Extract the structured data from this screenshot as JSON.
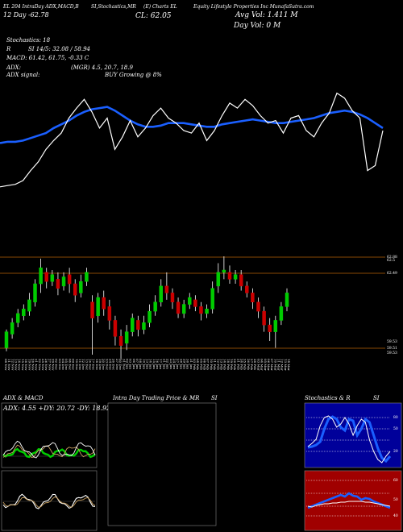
{
  "header": {
    "line1_left": "EL 204 IntraDay ADX,MACD,B",
    "line1_mid": "SI,Stochastics,MR",
    "line1_mid2": "(E) Charts EL",
    "line1_right": "Equity Lifestyle Properties Inc MunafaSutra.com",
    "line2_left": "12 Day  -62.78",
    "close": "CL: 62.05",
    "avg_vol": "Avg Vol: 1.411  M",
    "day_vol": "Day Vol: 0   M",
    "stoch": "Stochastics: 18",
    "r_label": "R",
    "si": "SI 14/5: 32.08 / 58.94",
    "macd": "MACD: 61.42, 61.75, -0.33 C",
    "adx": "ADX:",
    "adx_mid": "(MGR) 4.5, 20.7, 18.9",
    "adx_signal": "ADX  signal:",
    "signal_text": "BUY Growing @ 8%"
  },
  "panels": {
    "adx_title": "ADX  & MACD",
    "adx_values": "ADX: 4.55  +DY: 20.72  -DY: 18.92",
    "intraday_title": "Intra  Day Trading Price  & MR",
    "intraday_si": "SI",
    "stoch_title": "Stochastics & R",
    "stoch_si": "SI"
  },
  "chart_data": {
    "type": "candlestick",
    "price_levels": [
      62.88,
      62.5,
      62.49,
      59.53,
      59.51,
      59.53
    ],
    "price_level_labels": [
      "62.88",
      "62.5",
      "62.49",
      "59.53",
      "59.51",
      "59.53"
    ],
    "dates": [
      "08 Nov",
      "11 Nov",
      "12 Nov",
      "13 Nov",
      "14 Nov",
      "15 Nov",
      "18 Nov",
      "19 Nov",
      "20 Nov",
      "21 Nov",
      "22 Nov",
      "25 Nov",
      "26 Nov",
      "27 Nov",
      "29 Nov",
      "02 Dec",
      "03 Dec",
      "04 Dec",
      "05 Dec",
      "06 Dec",
      "09 Dec",
      "10 Dec",
      "11 Dec",
      "12 Dec",
      "13 Dec",
      "16 Dec",
      "17 Dec",
      "18 Dec",
      "19 Dec",
      "20 Dec",
      "23 Dec",
      "24 Dec",
      "26 Dec",
      "27 Dec",
      "30 Dec",
      "31 Dec",
      "02 Jan",
      "03 Jan",
      "06 Jan",
      "07 Jan",
      "08 Jan",
      "10 Jan",
      "13 Jan",
      "14 Jan",
      "15 Jan",
      "16 Jan",
      "17 Jan",
      "21 Jan",
      "22 Jan",
      "23 Jan",
      "24 Jan",
      "27 Jan",
      "28 Jan",
      "29 Jan",
      "30 Jan",
      "31 Jan",
      "03 Feb",
      "04 Feb",
      "05 Feb",
      "06 Feb",
      "07 Feb",
      "10 Feb",
      "11 Feb",
      "12 Feb",
      "13 Feb",
      "14 Feb",
      "18 Feb",
      "19 Feb",
      "20 Feb",
      "21 Feb",
      "24 Feb",
      "25 Feb",
      "26 Feb",
      "27 Feb",
      "28 Feb",
      "03 Mar",
      "04 Mar",
      "05 Mar",
      "06 Mar",
      "07 Mar",
      "10 Mar",
      "11 Mar",
      "12 Mar",
      "13 Mar",
      "14 Mar"
    ],
    "candles": [
      {
        "o": 59.6,
        "c": 60.3,
        "h": 60.4,
        "l": 59.45,
        "up": true
      },
      {
        "o": 60.2,
        "c": 60.7,
        "h": 60.9,
        "l": 60.0,
        "up": true
      },
      {
        "o": 60.7,
        "c": 61.1,
        "h": 61.3,
        "l": 60.5,
        "up": true
      },
      {
        "o": 61.0,
        "c": 61.3,
        "h": 61.5,
        "l": 60.8,
        "up": true
      },
      {
        "o": 61.2,
        "c": 61.7,
        "h": 62.0,
        "l": 61.0,
        "up": true
      },
      {
        "o": 61.6,
        "c": 62.4,
        "h": 62.6,
        "l": 61.4,
        "up": true
      },
      {
        "o": 62.4,
        "c": 63.1,
        "h": 63.5,
        "l": 62.0,
        "up": true
      },
      {
        "o": 62.9,
        "c": 62.5,
        "h": 63.1,
        "l": 62.2,
        "up": false
      },
      {
        "o": 62.5,
        "c": 62.8,
        "h": 63.0,
        "l": 62.3,
        "up": true
      },
      {
        "o": 62.6,
        "c": 62.2,
        "h": 62.9,
        "l": 61.9,
        "up": false
      },
      {
        "o": 62.3,
        "c": 62.7,
        "h": 62.9,
        "l": 62.1,
        "up": true
      },
      {
        "o": 62.8,
        "c": 62.4,
        "h": 63.1,
        "l": 62.0,
        "up": false
      },
      {
        "o": 62.4,
        "c": 61.9,
        "h": 62.6,
        "l": 61.6,
        "up": false
      },
      {
        "o": 62.0,
        "c": 62.5,
        "h": 62.8,
        "l": 61.8,
        "up": true
      },
      {
        "o": 62.5,
        "c": 62.9,
        "h": 63.1,
        "l": 62.3,
        "up": true
      },
      {
        "o": 61.6,
        "c": 60.9,
        "h": 61.9,
        "l": 59.3,
        "up": false
      },
      {
        "o": 61.0,
        "c": 61.8,
        "h": 62.0,
        "l": 60.7,
        "up": true
      },
      {
        "o": 61.8,
        "c": 61.3,
        "h": 62.1,
        "l": 61.0,
        "up": false
      },
      {
        "o": 61.4,
        "c": 60.8,
        "h": 61.7,
        "l": 60.4,
        "up": false
      },
      {
        "o": 60.8,
        "c": 60.1,
        "h": 61.0,
        "l": 59.7,
        "up": false
      },
      {
        "o": 60.1,
        "c": 59.7,
        "h": 60.4,
        "l": 59.1,
        "up": false
      },
      {
        "o": 59.8,
        "c": 60.3,
        "h": 60.6,
        "l": 59.5,
        "up": true
      },
      {
        "o": 60.3,
        "c": 60.9,
        "h": 61.1,
        "l": 60.1,
        "up": true
      },
      {
        "o": 60.8,
        "c": 60.4,
        "h": 61.0,
        "l": 60.1,
        "up": false
      },
      {
        "o": 60.4,
        "c": 60.7,
        "h": 61.0,
        "l": 60.2,
        "up": true
      },
      {
        "o": 60.7,
        "c": 61.2,
        "h": 61.5,
        "l": 60.5,
        "up": true
      },
      {
        "o": 61.2,
        "c": 61.6,
        "h": 61.9,
        "l": 61.0,
        "up": true
      },
      {
        "o": 61.6,
        "c": 62.3,
        "h": 62.6,
        "l": 61.4,
        "up": true
      },
      {
        "o": 62.3,
        "c": 62.0,
        "h": 62.9,
        "l": 61.7,
        "up": false
      },
      {
        "o": 62.0,
        "c": 61.6,
        "h": 62.2,
        "l": 61.3,
        "up": false
      },
      {
        "o": 61.6,
        "c": 61.1,
        "h": 61.8,
        "l": 60.9,
        "up": false
      },
      {
        "o": 61.1,
        "c": 61.5,
        "h": 61.7,
        "l": 60.9,
        "up": true
      },
      {
        "o": 61.5,
        "c": 61.8,
        "h": 62.0,
        "l": 61.3,
        "up": true
      },
      {
        "o": 61.7,
        "c": 61.4,
        "h": 61.9,
        "l": 61.2,
        "up": false
      },
      {
        "o": 61.4,
        "c": 61.1,
        "h": 61.6,
        "l": 60.8,
        "up": false
      },
      {
        "o": 61.1,
        "c": 61.3,
        "h": 61.5,
        "l": 60.9,
        "up": true
      },
      {
        "o": 61.3,
        "c": 62.2,
        "h": 62.5,
        "l": 61.1,
        "up": true
      },
      {
        "o": 62.3,
        "c": 62.9,
        "h": 63.3,
        "l": 62.0,
        "up": true
      },
      {
        "o": 62.9,
        "c": 63.0,
        "h": 63.6,
        "l": 62.6,
        "up": true
      },
      {
        "o": 62.9,
        "c": 62.6,
        "h": 63.2,
        "l": 62.4,
        "up": false
      },
      {
        "o": 62.6,
        "c": 62.8,
        "h": 63.0,
        "l": 62.4,
        "up": true
      },
      {
        "o": 62.8,
        "c": 62.3,
        "h": 63.0,
        "l": 62.1,
        "up": false
      },
      {
        "o": 62.3,
        "c": 62.0,
        "h": 62.5,
        "l": 61.8,
        "up": false
      },
      {
        "o": 62.0,
        "c": 61.6,
        "h": 62.2,
        "l": 61.3,
        "up": false
      },
      {
        "o": 61.6,
        "c": 61.2,
        "h": 61.8,
        "l": 60.9,
        "up": false
      },
      {
        "o": 61.2,
        "c": 60.6,
        "h": 61.4,
        "l": 60.3,
        "up": false
      },
      {
        "o": 60.6,
        "c": 60.3,
        "h": 60.9,
        "l": 59.9,
        "up": false
      },
      {
        "o": 60.3,
        "c": 60.8,
        "h": 61.0,
        "l": 59.6,
        "up": true
      },
      {
        "o": 60.8,
        "c": 61.4,
        "h": 61.6,
        "l": 60.6,
        "up": true
      },
      {
        "o": 61.4,
        "c": 62.0,
        "h": 62.2,
        "l": 61.2,
        "up": true
      }
    ],
    "stochastic_top": [
      0.15,
      0.16,
      0.17,
      0.2,
      0.28,
      0.35,
      0.45,
      0.52,
      0.58,
      0.7,
      0.78,
      0.85,
      0.75,
      0.62,
      0.7,
      0.45,
      0.55,
      0.68,
      0.55,
      0.62,
      0.72,
      0.78,
      0.7,
      0.66,
      0.6,
      0.58,
      0.66,
      0.52,
      0.6,
      0.72,
      0.82,
      0.78,
      0.85,
      0.8,
      0.72,
      0.66,
      0.68,
      0.58,
      0.7,
      0.72,
      0.6,
      0.55,
      0.66,
      0.74,
      0.9,
      0.86,
      0.76,
      0.7,
      0.28,
      0.32,
      0.6
    ],
    "stochastic_slow": [
      0.5,
      0.51,
      0.51,
      0.52,
      0.54,
      0.56,
      0.58,
      0.62,
      0.65,
      0.68,
      0.72,
      0.75,
      0.77,
      0.78,
      0.79,
      0.76,
      0.72,
      0.68,
      0.65,
      0.63,
      0.63,
      0.64,
      0.66,
      0.66,
      0.66,
      0.65,
      0.64,
      0.63,
      0.63,
      0.65,
      0.66,
      0.67,
      0.68,
      0.69,
      0.68,
      0.67,
      0.66,
      0.66,
      0.67,
      0.68,
      0.69,
      0.7,
      0.72,
      0.74,
      0.75,
      0.76,
      0.75,
      0.73,
      0.7,
      0.66,
      0.62
    ],
    "grid": false
  },
  "colors": {
    "up": "#00cc00",
    "down": "#cc0000",
    "stoch_blue": "#1a5fff",
    "level_line": "#b45f06",
    "panel_bg_blue": "#00009a",
    "panel_bg_red": "#a00000"
  }
}
